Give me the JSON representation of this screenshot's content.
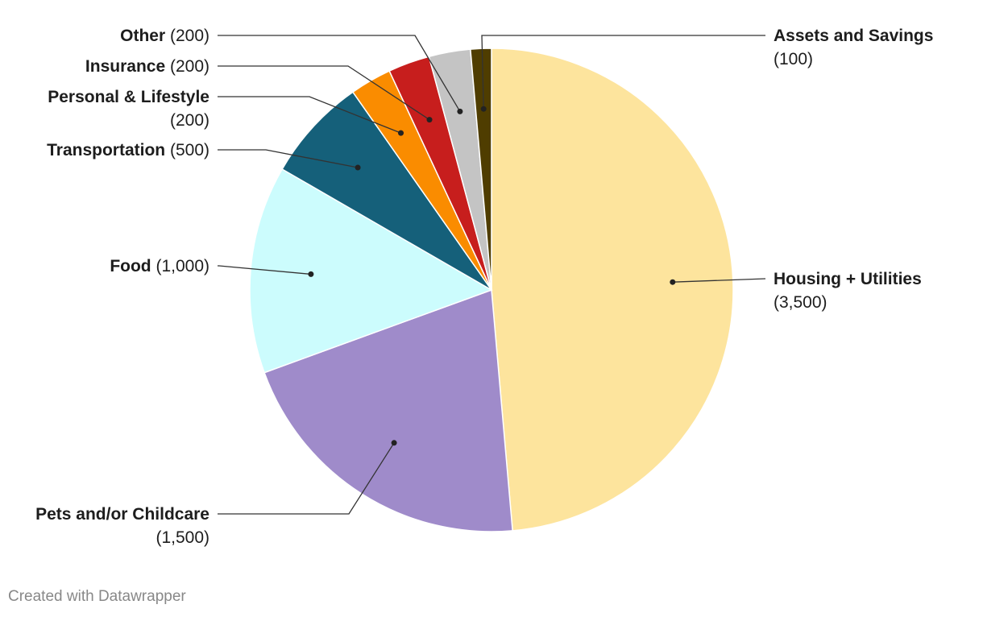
{
  "chart_data": {
    "type": "pie",
    "slices": [
      {
        "label": "Housing + Utilities",
        "value": 3500,
        "value_label": "(3,500)",
        "color": "#fde49d"
      },
      {
        "label": "Pets and/or Childcare",
        "value": 1500,
        "value_label": "(1,500)",
        "color": "#9f8bca"
      },
      {
        "label": "Food",
        "value": 1000,
        "value_label": "(1,000)",
        "color": "#ccfcfd"
      },
      {
        "label": "Transportation",
        "value": 500,
        "value_label": "(500)",
        "color": "#15607a"
      },
      {
        "label": "Personal & Lifestyle",
        "value": 200,
        "value_label": "(200)",
        "color": "#fa8c00"
      },
      {
        "label": "Insurance",
        "value": 200,
        "value_label": "(200)",
        "color": "#c71e1d"
      },
      {
        "label": "Other",
        "value": 200,
        "value_label": "(200)",
        "color": "#c4c4c4"
      },
      {
        "label": "Assets and Savings",
        "value": 100,
        "value_label": "(100)",
        "color": "#4f3d00"
      }
    ],
    "start_angle": "12 o'clock",
    "direction": "clockwise"
  },
  "footer": {
    "credit": "Created with Datawrapper"
  }
}
